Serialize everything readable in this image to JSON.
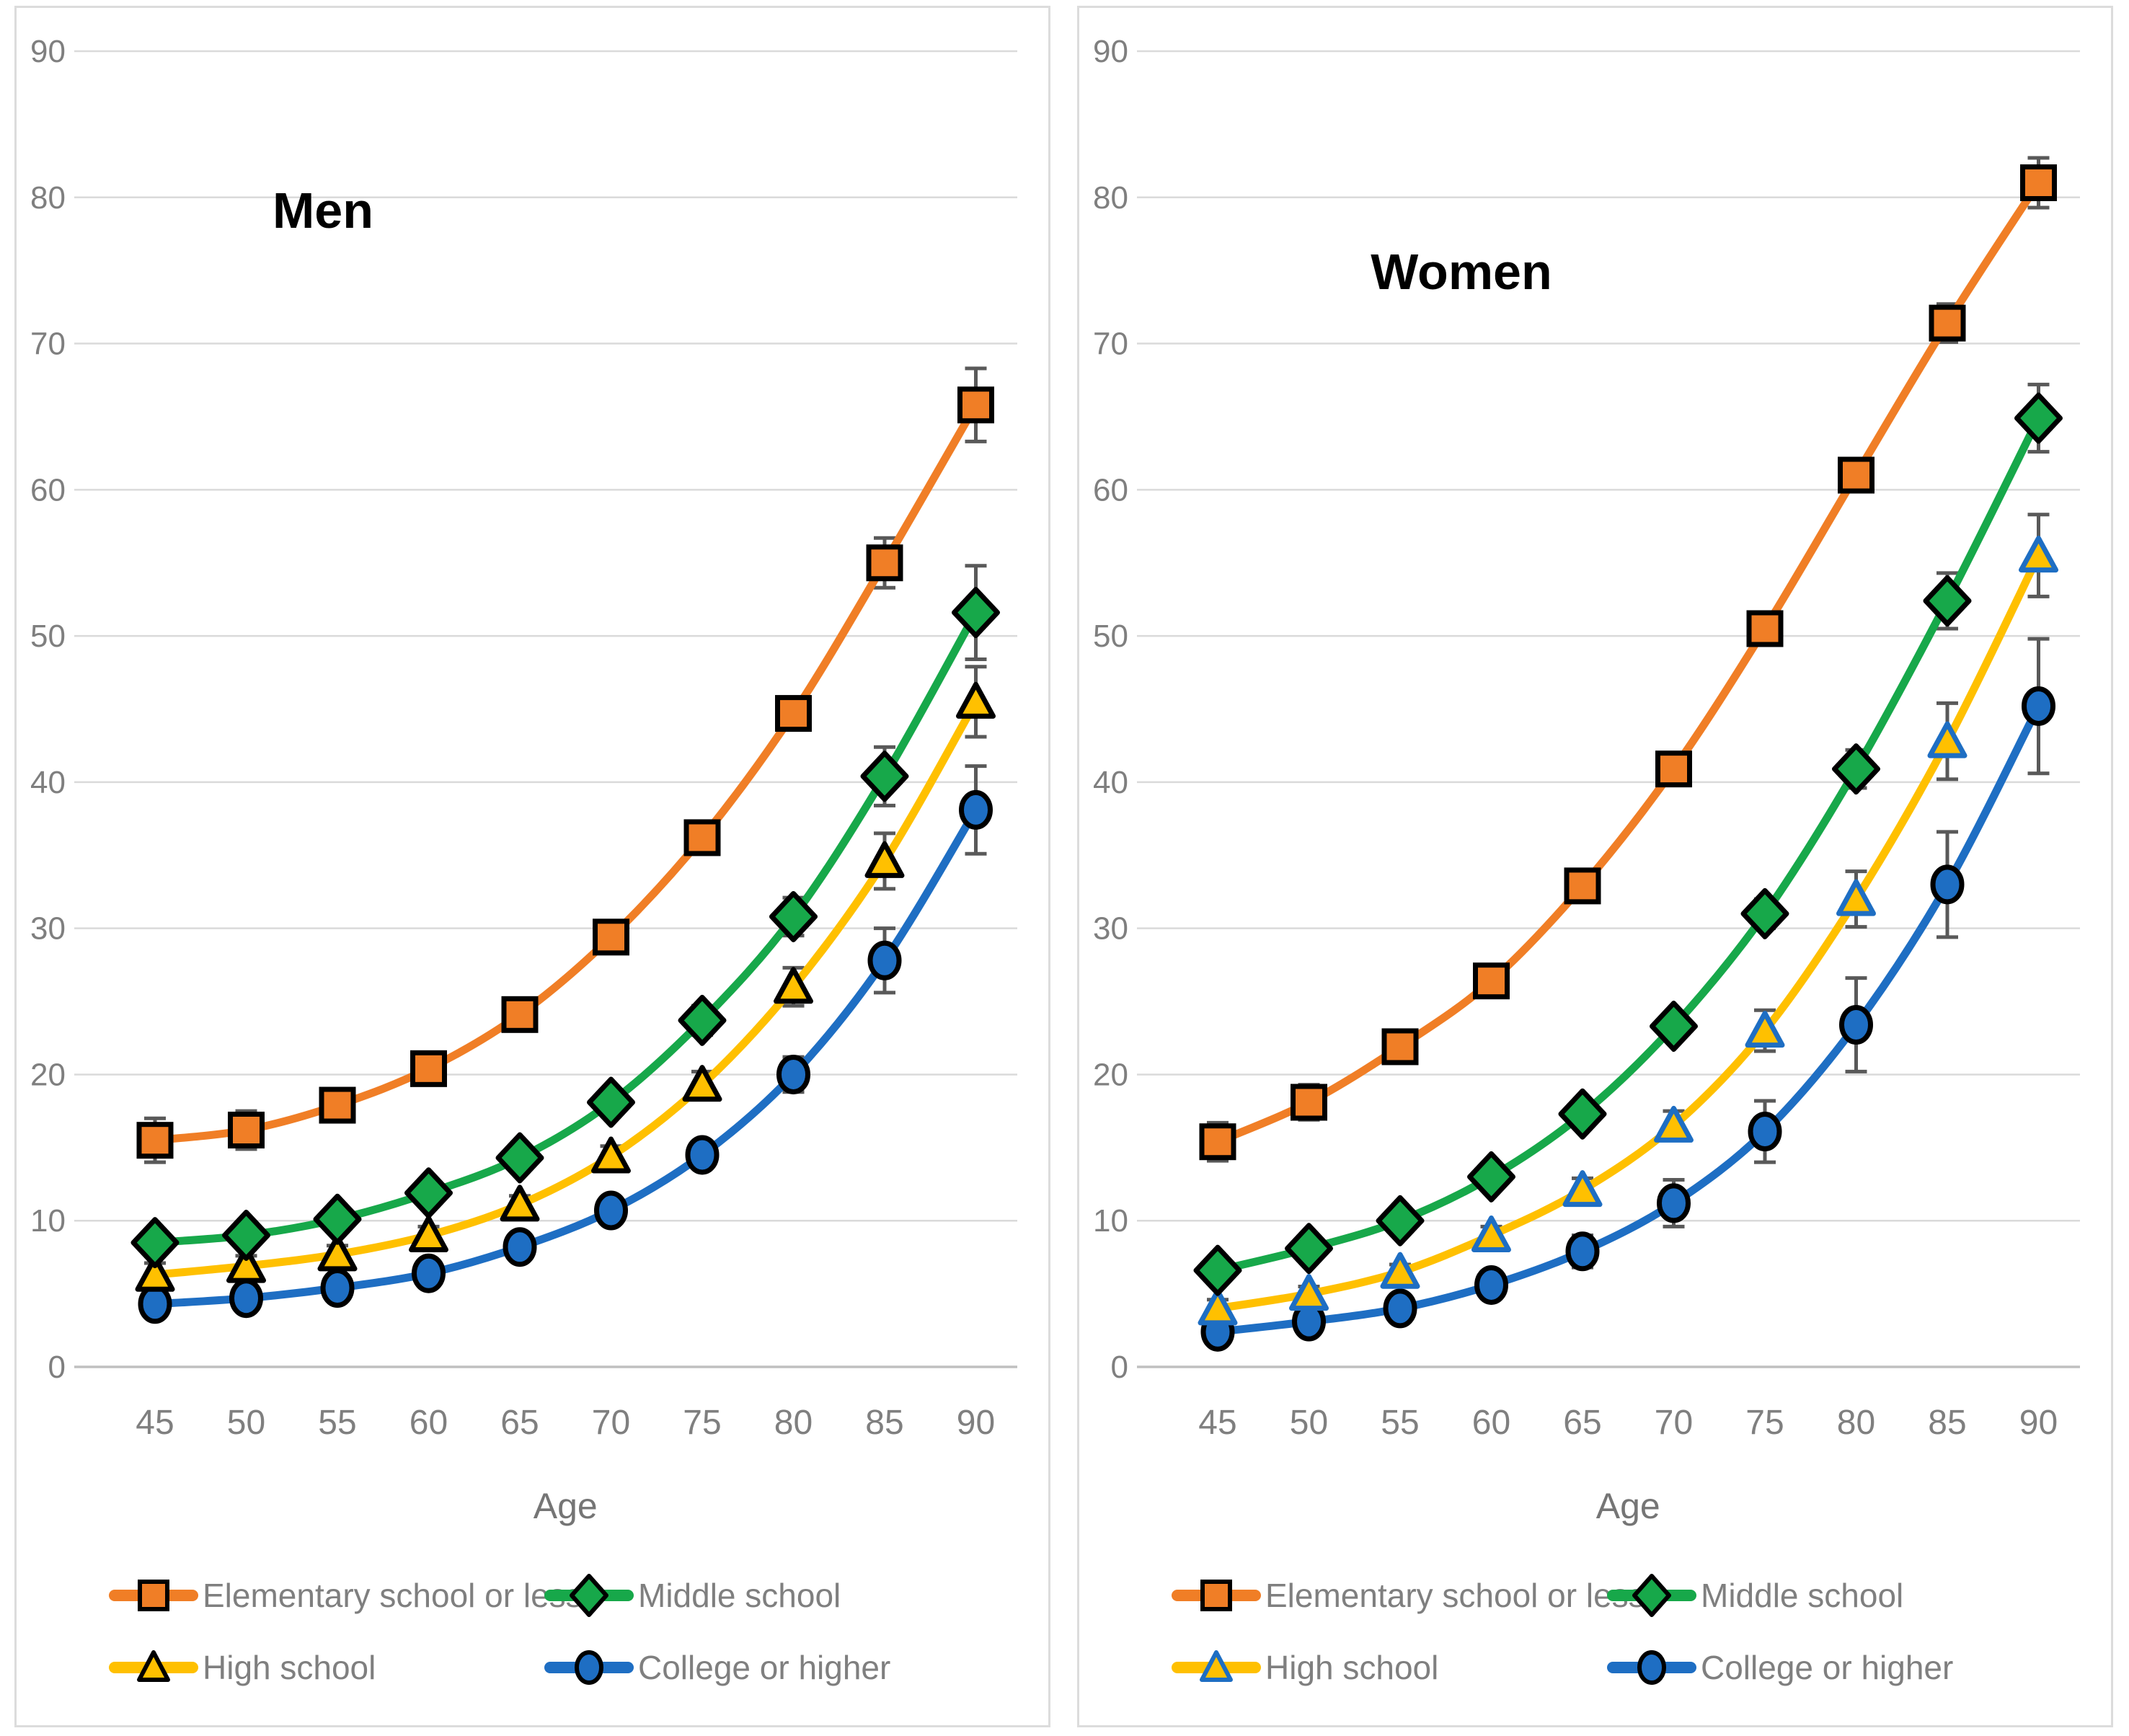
{
  "styles": {
    "grid_color": "#dadada",
    "zero_line_color": "#c0c0c0",
    "tick_label_color": "#7f7f7f",
    "axis_title_color": "#757575",
    "legend_text_color": "#7f7f7f",
    "error_bar_color": "#595959",
    "title_color": "#000000",
    "panel_border_color": "#dcdcdc",
    "background": "#ffffff"
  },
  "chart_data": [
    {
      "type": "line",
      "title": "Men",
      "xlabel": "Age",
      "x": [
        45,
        50,
        55,
        60,
        65,
        70,
        75,
        80,
        85,
        90
      ],
      "ylim": [
        0,
        90
      ],
      "y_ticks": [
        0,
        10,
        20,
        30,
        40,
        50,
        60,
        70,
        80,
        90
      ],
      "grid": "horizontal",
      "legend_position": "bottom",
      "error_bars": true,
      "series": [
        {
          "name": "Elementary school or less",
          "marker": "square",
          "color": "#f07e26",
          "marker_fill": "#f07e26",
          "marker_stroke": "#000000",
          "values": [
            15.5,
            16.2,
            17.9,
            20.4,
            24.1,
            29.4,
            36.2,
            44.7,
            55.0,
            65.8
          ],
          "errors": [
            1.5,
            1.3,
            1.1,
            1.0,
            0.9,
            0.9,
            1.0,
            1.1,
            1.7,
            2.5
          ]
        },
        {
          "name": "Middle school",
          "marker": "diamond",
          "color": "#17a84a",
          "marker_fill": "#17a84a",
          "marker_stroke": "#000000",
          "values": [
            8.5,
            9.0,
            10.1,
            11.9,
            14.3,
            18.1,
            23.7,
            30.8,
            40.4,
            51.6
          ],
          "errors": [
            0.9,
            0.8,
            0.7,
            0.7,
            0.7,
            0.8,
            1.0,
            1.3,
            2.0,
            3.2
          ]
        },
        {
          "name": "High school",
          "marker": "triangle",
          "color": "#ffc000",
          "marker_fill": "#ffc000",
          "marker_stroke": "#000000",
          "values": [
            6.3,
            6.9,
            7.7,
            9.0,
            11.1,
            14.4,
            19.3,
            26.0,
            34.6,
            45.5
          ],
          "errors": [
            0.8,
            0.7,
            0.6,
            0.6,
            0.6,
            0.7,
            0.9,
            1.3,
            1.9,
            2.4
          ]
        },
        {
          "name": "College or higher",
          "marker": "circle",
          "color": "#1e6ec3",
          "marker_fill": "#1e6ec3",
          "marker_stroke": "#000000",
          "values": [
            4.3,
            4.7,
            5.4,
            6.4,
            8.2,
            10.7,
            14.5,
            20.0,
            27.8,
            38.1
          ],
          "errors": [
            0.5,
            0.5,
            0.4,
            0.4,
            0.5,
            0.6,
            0.8,
            1.2,
            2.2,
            3.0
          ]
        }
      ]
    },
    {
      "type": "line",
      "title": "Women",
      "xlabel": "Age",
      "x": [
        45,
        50,
        55,
        60,
        65,
        70,
        75,
        80,
        85,
        90
      ],
      "ylim": [
        0,
        90
      ],
      "y_ticks": [
        0,
        10,
        20,
        30,
        40,
        50,
        60,
        70,
        80,
        90
      ],
      "grid": "horizontal",
      "legend_position": "bottom",
      "error_bars": true,
      "series": [
        {
          "name": "Elementary school or less",
          "marker": "square",
          "color": "#f07e26",
          "marker_fill": "#f07e26",
          "marker_stroke": "#000000",
          "values": [
            15.4,
            18.1,
            21.9,
            26.4,
            32.9,
            40.9,
            50.5,
            61.0,
            71.4,
            81.0
          ],
          "errors": [
            1.3,
            1.2,
            1.1,
            1.0,
            0.9,
            0.9,
            1.0,
            1.1,
            1.3,
            1.7
          ]
        },
        {
          "name": "Middle school",
          "marker": "diamond",
          "color": "#17a84a",
          "marker_fill": "#17a84a",
          "marker_stroke": "#000000",
          "values": [
            6.6,
            8.1,
            10.0,
            13.0,
            17.3,
            23.3,
            31.0,
            40.9,
            52.4,
            64.9
          ],
          "errors": [
            0.7,
            0.6,
            0.6,
            0.6,
            0.7,
            0.8,
            1.0,
            1.3,
            1.9,
            2.3
          ]
        },
        {
          "name": "High school",
          "marker": "triangle",
          "color": "#ffc000",
          "marker_fill": "#ffc000",
          "marker_stroke": "#1e6ec3",
          "values": [
            4.0,
            5.0,
            6.5,
            9.0,
            12.1,
            16.5,
            23.0,
            32.0,
            42.8,
            55.5
          ],
          "errors": [
            0.6,
            0.5,
            0.5,
            0.6,
            0.8,
            1.0,
            1.4,
            1.9,
            2.6,
            2.8
          ]
        },
        {
          "name": "College or higher",
          "marker": "circle",
          "color": "#1e6ec3",
          "marker_fill": "#1e6ec3",
          "marker_stroke": "#000000",
          "values": [
            2.4,
            3.1,
            4.0,
            5.6,
            7.9,
            11.2,
            16.1,
            23.4,
            33.0,
            45.2
          ],
          "errors": [
            0.4,
            0.4,
            0.4,
            0.6,
            1.1,
            1.6,
            2.1,
            3.2,
            3.6,
            4.6
          ]
        }
      ]
    }
  ]
}
